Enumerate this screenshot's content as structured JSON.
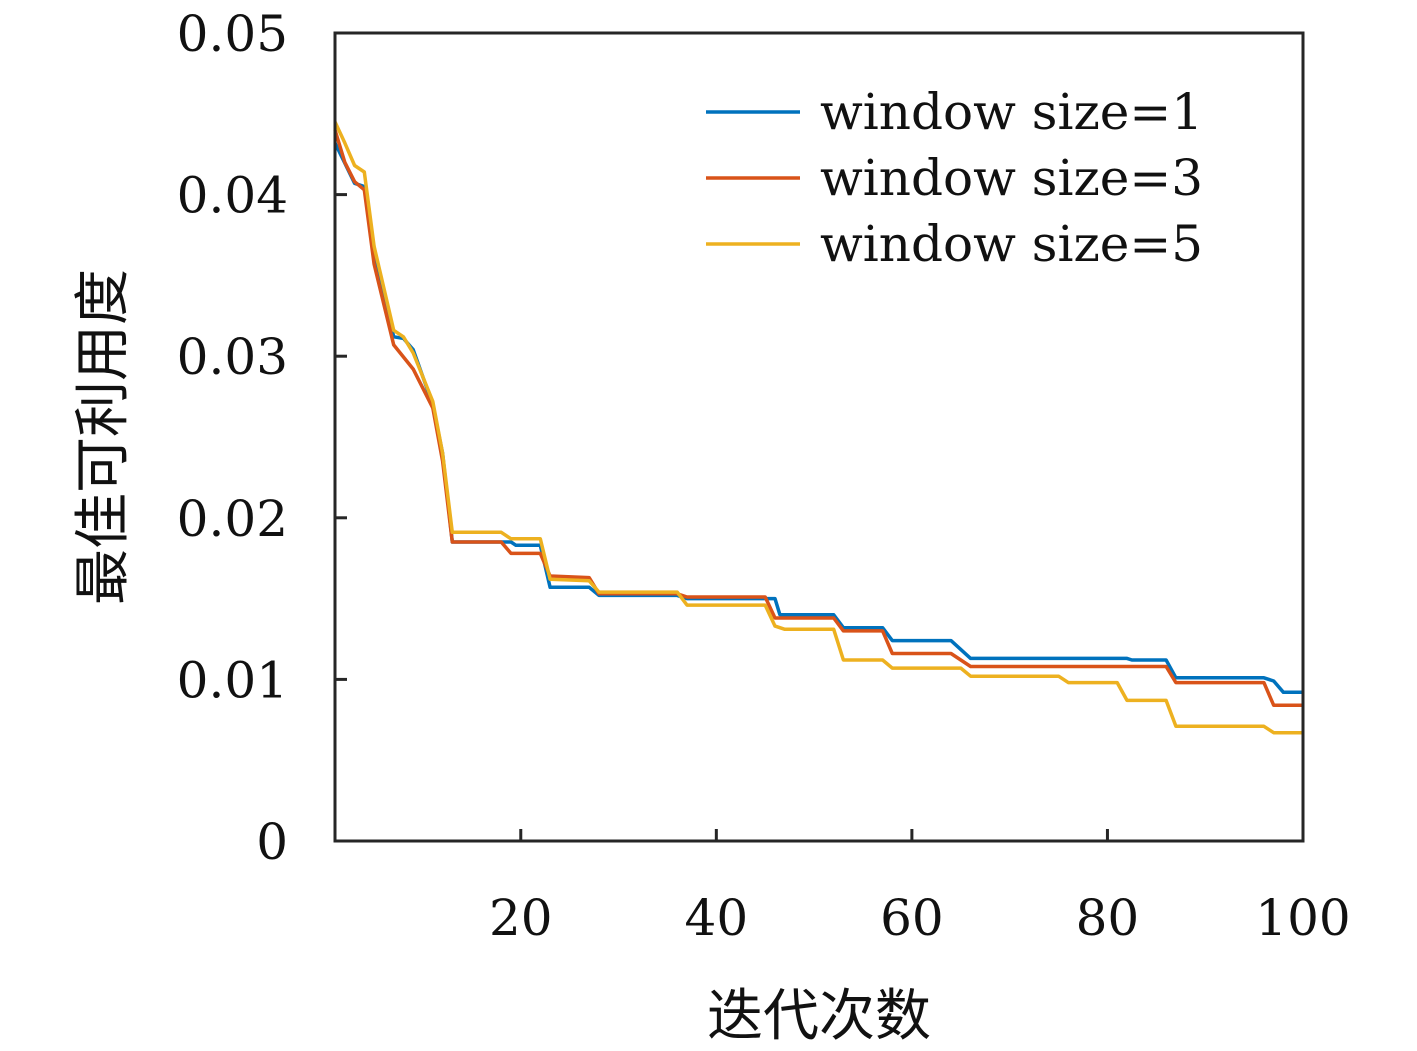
{
  "chart_data": {
    "type": "line",
    "title": "",
    "xlabel": "迭代次数",
    "ylabel": "最佳可利用度",
    "xlim": [
      1,
      100
    ],
    "ylim": [
      0,
      0.05
    ],
    "xticks": [
      20,
      40,
      60,
      80,
      100
    ],
    "xtick_labels": [
      "20",
      "40",
      "60",
      "80",
      "100"
    ],
    "yticks": [
      0,
      0.01,
      0.02,
      0.03,
      0.04,
      0.05
    ],
    "ytick_labels": [
      "0",
      "0.01",
      "0.02",
      "0.03",
      "0.04",
      "0.05"
    ],
    "grid": false,
    "legend_position": "top-right",
    "series": [
      {
        "name": "window size=1",
        "color": "#0072BD",
        "points": [
          [
            1,
            0.0432
          ],
          [
            3,
            0.0407
          ],
          [
            4,
            0.0405
          ],
          [
            5,
            0.0365
          ],
          [
            7,
            0.0312
          ],
          [
            8,
            0.0311
          ],
          [
            9,
            0.0304
          ],
          [
            11,
            0.027
          ],
          [
            12,
            0.024
          ],
          [
            13,
            0.0185
          ],
          [
            19,
            0.0185
          ],
          [
            19.5,
            0.0183
          ],
          [
            22,
            0.0183
          ],
          [
            23,
            0.0157
          ],
          [
            27,
            0.0157
          ],
          [
            28,
            0.0152
          ],
          [
            36,
            0.0152
          ],
          [
            37,
            0.015
          ],
          [
            46,
            0.015
          ],
          [
            46.5,
            0.014
          ],
          [
            52,
            0.014
          ],
          [
            53,
            0.0132
          ],
          [
            57,
            0.0132
          ],
          [
            58,
            0.0124
          ],
          [
            64,
            0.0124
          ],
          [
            66,
            0.0113
          ],
          [
            82,
            0.0113
          ],
          [
            82.5,
            0.0112
          ],
          [
            86,
            0.0112
          ],
          [
            87,
            0.0101
          ],
          [
            96,
            0.0101
          ],
          [
            97,
            0.0099
          ],
          [
            98,
            0.0092
          ],
          [
            100,
            0.0092
          ]
        ]
      },
      {
        "name": "window size=3",
        "color": "#D95319",
        "points": [
          [
            1,
            0.044
          ],
          [
            2,
            0.042
          ],
          [
            3,
            0.0408
          ],
          [
            4,
            0.0403
          ],
          [
            5,
            0.0357
          ],
          [
            7,
            0.0307
          ],
          [
            9,
            0.0292
          ],
          [
            11,
            0.0268
          ],
          [
            12,
            0.0235
          ],
          [
            13,
            0.0185
          ],
          [
            18,
            0.0185
          ],
          [
            19,
            0.0178
          ],
          [
            22,
            0.0178
          ],
          [
            23,
            0.0164
          ],
          [
            27,
            0.0163
          ],
          [
            28,
            0.0153
          ],
          [
            36,
            0.0153
          ],
          [
            37,
            0.0151
          ],
          [
            45,
            0.0151
          ],
          [
            46,
            0.0138
          ],
          [
            52,
            0.0138
          ],
          [
            53,
            0.013
          ],
          [
            57,
            0.013
          ],
          [
            58,
            0.0116
          ],
          [
            64,
            0.0116
          ],
          [
            66,
            0.0108
          ],
          [
            86,
            0.0108
          ],
          [
            87,
            0.0098
          ],
          [
            96,
            0.0098
          ],
          [
            97,
            0.0084
          ],
          [
            100,
            0.0084
          ]
        ]
      },
      {
        "name": "window size=5",
        "color": "#EDB120",
        "points": [
          [
            1,
            0.0445
          ],
          [
            2,
            0.0432
          ],
          [
            3,
            0.0418
          ],
          [
            4,
            0.0414
          ],
          [
            5,
            0.0368
          ],
          [
            7,
            0.0316
          ],
          [
            8,
            0.0312
          ],
          [
            9,
            0.0302
          ],
          [
            11,
            0.0272
          ],
          [
            12,
            0.024
          ],
          [
            13,
            0.0191
          ],
          [
            18,
            0.0191
          ],
          [
            19,
            0.0187
          ],
          [
            22,
            0.0187
          ],
          [
            23,
            0.0162
          ],
          [
            27,
            0.0161
          ],
          [
            28,
            0.0154
          ],
          [
            36,
            0.0154
          ],
          [
            37,
            0.0146
          ],
          [
            45,
            0.0146
          ],
          [
            46,
            0.0133
          ],
          [
            47,
            0.0131
          ],
          [
            52,
            0.0131
          ],
          [
            53,
            0.0112
          ],
          [
            57,
            0.0112
          ],
          [
            58,
            0.0107
          ],
          [
            65,
            0.0107
          ],
          [
            66,
            0.0102
          ],
          [
            75,
            0.0102
          ],
          [
            76,
            0.0098
          ],
          [
            81,
            0.0098
          ],
          [
            82,
            0.0087
          ],
          [
            86,
            0.0087
          ],
          [
            87,
            0.0071
          ],
          [
            96,
            0.0071
          ],
          [
            97,
            0.0067
          ],
          [
            100,
            0.0067
          ]
        ]
      }
    ]
  }
}
